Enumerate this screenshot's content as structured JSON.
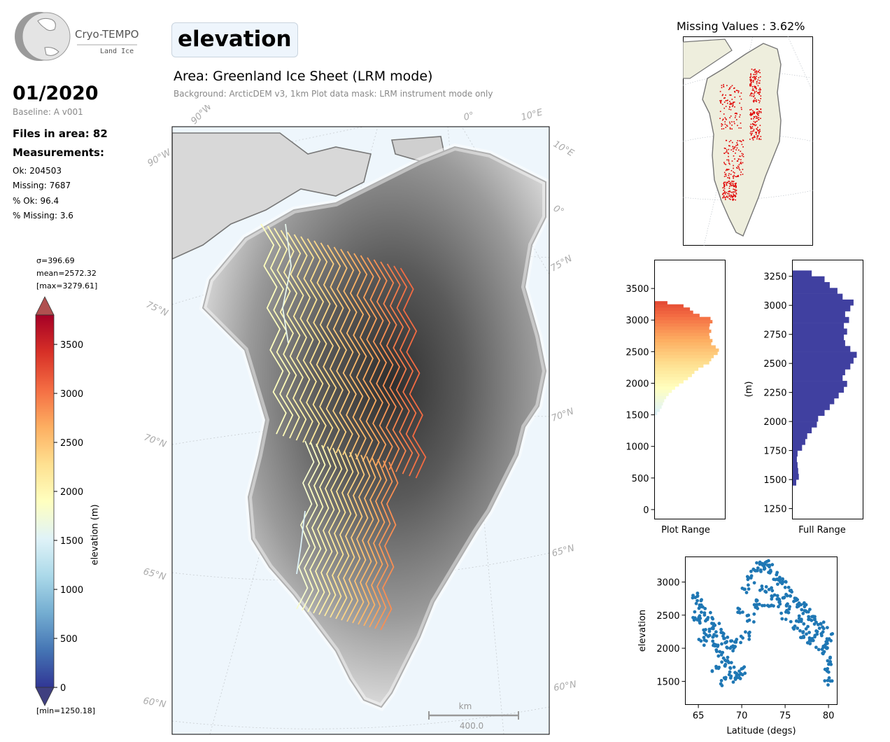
{
  "header": {
    "logo_name": "Cryo-TEMPO",
    "logo_sub": "Land Ice",
    "date": "01/2020",
    "baseline": "Baseline: A v001",
    "files": "Files in area: 82",
    "measurements_title": "Measurements:",
    "stats": [
      "Ok: 204503",
      "Missing: 7687",
      "% Ok: 96.4",
      "% Missing: 3.6"
    ],
    "variable": "elevation",
    "area_title": "Area: Greenland Ice Sheet (LRM mode)",
    "area_sub": "Background: ArcticDEM v3, 1km   Plot data mask: LRM instrument mode only"
  },
  "colors": {
    "accent": "#e8543a",
    "histogram_full": "#4040a0",
    "scatter": "#1f77b4",
    "missing": "#e00000",
    "land": "#eeeedd",
    "ocean": "#eef6fc"
  },
  "chart_data": [
    {
      "type": "heatmap",
      "name": "colorbar",
      "label": "elevation (m)",
      "ticks": [
        0,
        500,
        1000,
        1500,
        2000,
        2500,
        3000,
        3500
      ],
      "ylim": [
        0,
        3800
      ],
      "notes": [
        "σ=396.69",
        "mean=2572.32",
        "[max=3279.61]",
        "[min=1250.18]"
      ],
      "colors": [
        "#313695",
        "#4575b4",
        "#74add1",
        "#abd9e9",
        "#e0f3f8",
        "#ffffbf",
        "#fee090",
        "#fdae61",
        "#f46d43",
        "#d73027",
        "#a50026"
      ]
    },
    {
      "type": "map",
      "name": "main-map",
      "region": "Greenland",
      "lat_labels": [
        "60°N",
        "65°N",
        "70°N",
        "75°N"
      ],
      "right_lat_labels": [
        "60°N",
        "65°N",
        "70°N",
        "75°N"
      ],
      "lon_labels": [
        "90°W",
        "90°W",
        "0°",
        "10°E",
        "10°E",
        "0°"
      ],
      "scale_bar": {
        "unit": "km",
        "value": "400.0"
      }
    },
    {
      "type": "map",
      "name": "missing-map",
      "title": "Missing Values : 3.62%"
    },
    {
      "type": "bar",
      "name": "plot-range-histogram",
      "xlabel": "Plot Range",
      "ylim": [
        -150,
        3950
      ],
      "yticks": [
        0,
        500,
        1000,
        1500,
        2000,
        2500,
        3000,
        3500
      ],
      "bins": [
        {
          "y": 1500,
          "v": 0.04
        },
        {
          "y": 1550,
          "v": 0.08
        },
        {
          "y": 1600,
          "v": 0.11
        },
        {
          "y": 1650,
          "v": 0.13
        },
        {
          "y": 1700,
          "v": 0.15
        },
        {
          "y": 1750,
          "v": 0.18
        },
        {
          "y": 1800,
          "v": 0.22
        },
        {
          "y": 1850,
          "v": 0.27
        },
        {
          "y": 1900,
          "v": 0.32
        },
        {
          "y": 1950,
          "v": 0.38
        },
        {
          "y": 2000,
          "v": 0.45
        },
        {
          "y": 2050,
          "v": 0.52
        },
        {
          "y": 2100,
          "v": 0.58
        },
        {
          "y": 2150,
          "v": 0.62
        },
        {
          "y": 2200,
          "v": 0.68
        },
        {
          "y": 2250,
          "v": 0.76
        },
        {
          "y": 2300,
          "v": 0.85
        },
        {
          "y": 2350,
          "v": 0.88
        },
        {
          "y": 2400,
          "v": 0.92
        },
        {
          "y": 2450,
          "v": 0.98
        },
        {
          "y": 2500,
          "v": 1.0
        },
        {
          "y": 2550,
          "v": 0.95
        },
        {
          "y": 2600,
          "v": 0.88
        },
        {
          "y": 2650,
          "v": 0.9
        },
        {
          "y": 2700,
          "v": 0.86
        },
        {
          "y": 2750,
          "v": 0.85
        },
        {
          "y": 2800,
          "v": 0.88
        },
        {
          "y": 2850,
          "v": 0.85
        },
        {
          "y": 2900,
          "v": 0.86
        },
        {
          "y": 2950,
          "v": 0.9
        },
        {
          "y": 3000,
          "v": 0.87
        },
        {
          "y": 3050,
          "v": 0.7
        },
        {
          "y": 3100,
          "v": 0.6
        },
        {
          "y": 3150,
          "v": 0.55
        },
        {
          "y": 3200,
          "v": 0.45
        },
        {
          "y": 3250,
          "v": 0.2
        }
      ]
    },
    {
      "type": "bar",
      "name": "full-range-histogram",
      "xlabel": "Full Range",
      "ylabel": "(m)",
      "ylim": [
        1160,
        3390
      ],
      "yticks": [
        1250,
        1500,
        1750,
        2000,
        2250,
        2500,
        2750,
        3000,
        3250
      ],
      "bins": [
        {
          "y": 1450,
          "v": 0.06
        },
        {
          "y": 1500,
          "v": 0.1
        },
        {
          "y": 1550,
          "v": 0.09
        },
        {
          "y": 1600,
          "v": 0.08
        },
        {
          "y": 1650,
          "v": 0.07
        },
        {
          "y": 1700,
          "v": 0.08
        },
        {
          "y": 1750,
          "v": 0.15
        },
        {
          "y": 1800,
          "v": 0.2
        },
        {
          "y": 1850,
          "v": 0.23
        },
        {
          "y": 1900,
          "v": 0.3
        },
        {
          "y": 1950,
          "v": 0.38
        },
        {
          "y": 2000,
          "v": 0.4
        },
        {
          "y": 2050,
          "v": 0.5
        },
        {
          "y": 2100,
          "v": 0.58
        },
        {
          "y": 2150,
          "v": 0.65
        },
        {
          "y": 2200,
          "v": 0.72
        },
        {
          "y": 2250,
          "v": 0.8
        },
        {
          "y": 2300,
          "v": 0.85
        },
        {
          "y": 2350,
          "v": 0.78
        },
        {
          "y": 2400,
          "v": 0.82
        },
        {
          "y": 2450,
          "v": 0.9
        },
        {
          "y": 2500,
          "v": 0.95
        },
        {
          "y": 2550,
          "v": 1.0
        },
        {
          "y": 2600,
          "v": 0.9
        },
        {
          "y": 2650,
          "v": 0.82
        },
        {
          "y": 2700,
          "v": 0.8
        },
        {
          "y": 2750,
          "v": 0.85
        },
        {
          "y": 2800,
          "v": 0.8
        },
        {
          "y": 2850,
          "v": 0.88
        },
        {
          "y": 2900,
          "v": 0.82
        },
        {
          "y": 2950,
          "v": 0.9
        },
        {
          "y": 3000,
          "v": 0.95
        },
        {
          "y": 3050,
          "v": 0.78
        },
        {
          "y": 3100,
          "v": 0.7
        },
        {
          "y": 3150,
          "v": 0.58
        },
        {
          "y": 3200,
          "v": 0.5
        },
        {
          "y": 3250,
          "v": 0.3
        }
      ]
    },
    {
      "type": "scatter",
      "name": "elevation-vs-latitude",
      "xlabel": "Latitude (degs)",
      "ylabel": "elevation",
      "xlim": [
        63.5,
        81
      ],
      "ylim": [
        1150,
        3380
      ],
      "xticks": [
        65,
        70,
        75,
        80
      ],
      "yticks": [
        1500,
        2000,
        2500,
        3000
      ],
      "points": [
        [
          64.5,
          2800
        ],
        [
          65,
          2700
        ],
        [
          65.5,
          2620
        ],
        [
          66,
          2480
        ],
        [
          66.5,
          2400
        ],
        [
          67,
          2310
        ],
        [
          67.5,
          2220
        ],
        [
          68,
          2120
        ],
        [
          68.5,
          2050
        ],
        [
          69,
          2000
        ],
        [
          69.5,
          2150
        ],
        [
          70,
          2600
        ],
        [
          70.5,
          2900
        ],
        [
          71,
          3050
        ],
        [
          71.5,
          3150
        ],
        [
          72,
          3220
        ],
        [
          72.5,
          3260
        ],
        [
          73,
          3260
        ],
        [
          73.5,
          3200
        ],
        [
          74,
          3100
        ],
        [
          74.5,
          3020
        ],
        [
          75,
          2950
        ],
        [
          75.5,
          2850
        ],
        [
          76,
          2760
        ],
        [
          76.5,
          2680
        ],
        [
          77,
          2620
        ],
        [
          77.5,
          2560
        ],
        [
          78,
          2480
        ],
        [
          78.5,
          2420
        ],
        [
          79,
          2350
        ],
        [
          79.5,
          2250
        ],
        [
          80,
          1500
        ],
        [
          65,
          2500
        ],
        [
          66,
          2250
        ],
        [
          67,
          2000
        ],
        [
          68,
          1800
        ],
        [
          69,
          1650
        ],
        [
          70,
          1650
        ],
        [
          64.8,
          2400
        ],
        [
          66.5,
          2150
        ],
        [
          67.5,
          1950
        ],
        [
          68.5,
          1750
        ],
        [
          69.5,
          1600
        ],
        [
          70.5,
          2200
        ],
        [
          71.5,
          2700
        ],
        [
          72.5,
          2900
        ],
        [
          73.5,
          2850
        ],
        [
          74.5,
          2800
        ],
        [
          75.5,
          2600
        ],
        [
          76.5,
          2450
        ],
        [
          77.5,
          2300
        ],
        [
          78.5,
          2200
        ],
        [
          79.5,
          2000
        ],
        [
          80,
          1800
        ],
        [
          65.5,
          2100
        ],
        [
          67,
          1700
        ],
        [
          68,
          1500
        ],
        [
          69,
          1550
        ],
        [
          71,
          2450
        ],
        [
          72,
          2650
        ],
        [
          73,
          2700
        ],
        [
          74,
          2680
        ],
        [
          75,
          2500
        ],
        [
          76,
          2350
        ],
        [
          77,
          2200
        ],
        [
          78,
          2100
        ],
        [
          79,
          1950
        ],
        [
          80,
          2150
        ],
        [
          80,
          2050
        ],
        [
          79.8,
          1700
        ]
      ]
    }
  ]
}
